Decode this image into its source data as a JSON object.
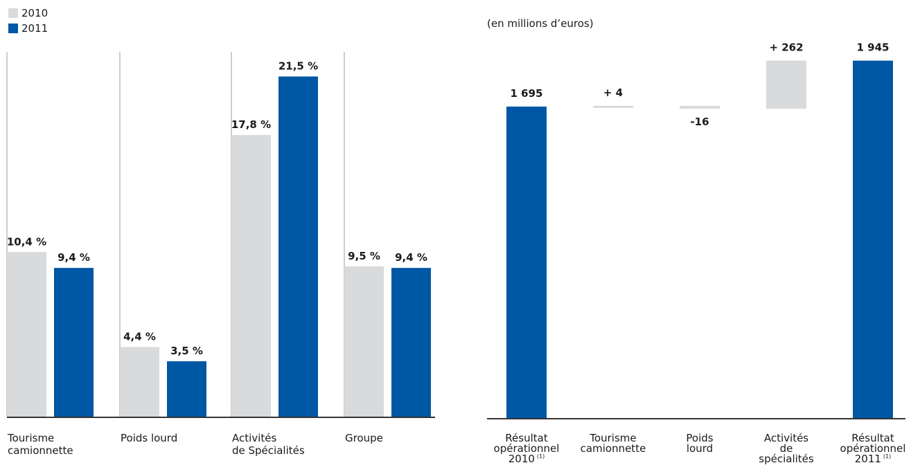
{
  "colors": {
    "y2010": "#d9dadb",
    "y2011": "#0057a4",
    "axis": "#333333",
    "divider": "#9a9a9a"
  },
  "chart_data": [
    {
      "type": "bar",
      "legend": [
        "2010",
        "2011"
      ],
      "categories": [
        [
          "Tourisme",
          "camionnette"
        ],
        [
          "Poids lourd"
        ],
        [
          "Activités",
          "de Spécialités"
        ],
        [
          "Groupe"
        ]
      ],
      "series": [
        {
          "name": "2010",
          "values": [
            10.4,
            4.4,
            17.8,
            9.5
          ],
          "labels": [
            "10,4 %",
            "4,4 %",
            "17,8 %",
            "9,5 %"
          ]
        },
        {
          "name": "2011",
          "values": [
            9.4,
            3.5,
            21.5,
            9.4
          ],
          "labels": [
            "9,4 %",
            "3,5 %",
            "21,5 %",
            "9,4 %"
          ]
        }
      ],
      "ylim": [
        0,
        25
      ]
    },
    {
      "type": "bar",
      "subtype": "waterfall",
      "unit": "(en millions d’euros)",
      "categories": [
        [
          "Résultat",
          "opérationnel",
          "2010"
        ],
        [
          "Tourisme",
          "camionnette"
        ],
        [
          "Poids",
          "lourd"
        ],
        [
          "Activités",
          "de",
          "spécialités"
        ],
        [
          "Résultat",
          "opérationnel",
          "2011"
        ]
      ],
      "footnote_mark": "(1)",
      "values": [
        1695,
        4,
        -16,
        262,
        1945
      ],
      "labels": [
        "1 695",
        "+ 4",
        "-16",
        "+ 262",
        "1 945"
      ],
      "kinds": [
        "total",
        "delta",
        "delta",
        "delta",
        "total"
      ],
      "ylim": [
        0,
        2000
      ]
    }
  ]
}
